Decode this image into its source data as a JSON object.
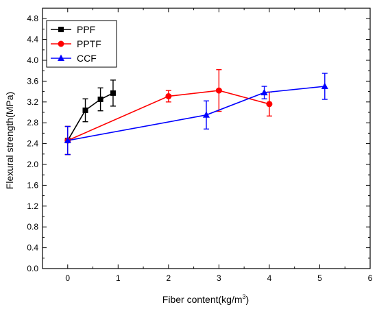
{
  "chart_data": {
    "type": "line",
    "xlabel": "Fiber content(kg/m",
    "xlabel_sup": "3",
    "xlabel_tail": ")",
    "ylabel": "Flexural strength(MPa)",
    "xlim": [
      -0.5,
      6
    ],
    "ylim": [
      0,
      5
    ],
    "x_ticks": [
      0,
      1,
      2,
      3,
      4,
      5,
      6
    ],
    "y_ticks": [
      0.0,
      0.4,
      0.8,
      1.2,
      1.6,
      2.0,
      2.4,
      2.8,
      3.2,
      3.6,
      4.0,
      4.4,
      4.8
    ],
    "x_tick_labels": [
      "0",
      "1",
      "2",
      "3",
      "4",
      "5",
      "6"
    ],
    "y_tick_labels": [
      "0.0",
      "0.4",
      "0.8",
      "1.2",
      "1.6",
      "2.0",
      "2.4",
      "2.8",
      "3.2",
      "3.6",
      "4.0",
      "4.4",
      "4.8"
    ],
    "legend_position": "top-left",
    "grid": false,
    "series": [
      {
        "name": "PPF",
        "color": "#000000",
        "marker": "square",
        "x": [
          0,
          0.35,
          0.65,
          0.9
        ],
        "y": [
          2.46,
          3.04,
          3.25,
          3.37
        ],
        "err": [
          0.27,
          0.22,
          0.22,
          0.25
        ]
      },
      {
        "name": "PPTF",
        "color": "#ff0000",
        "marker": "circle",
        "x": [
          0,
          2.0,
          3.0,
          4.0
        ],
        "y": [
          2.46,
          3.31,
          3.42,
          3.16
        ],
        "err": [
          0.27,
          0.11,
          0.4,
          0.23
        ]
      },
      {
        "name": "CCF",
        "color": "#0000ff",
        "marker": "triangle",
        "x": [
          0,
          2.75,
          3.9,
          5.1
        ],
        "y": [
          2.46,
          2.95,
          3.38,
          3.5
        ],
        "err": [
          0.27,
          0.27,
          0.12,
          0.25
        ]
      }
    ]
  }
}
